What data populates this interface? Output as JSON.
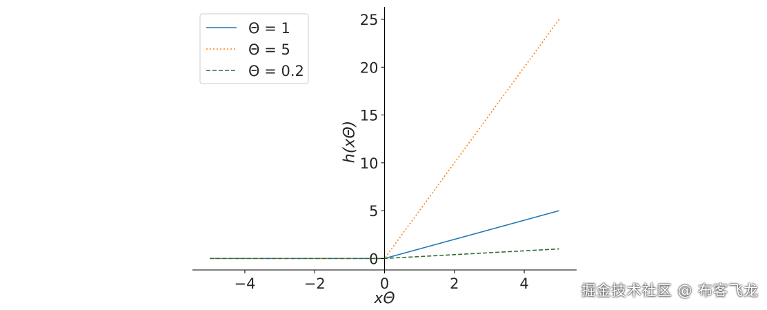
{
  "chart_data": {
    "type": "line",
    "xlabel": "xΘ",
    "ylabel": "h(xΘ)",
    "xlim": [
      -5.5,
      5.5
    ],
    "ylim": [
      -1.2,
      26.3
    ],
    "xticks": [
      -4,
      -2,
      0,
      2,
      4
    ],
    "xtick_labels": [
      "−4",
      "−2",
      "0",
      "2",
      "4"
    ],
    "yticks": [
      0,
      5,
      10,
      15,
      20,
      25
    ],
    "ytick_labels": [
      "0",
      "5",
      "10",
      "15",
      "20",
      "25"
    ],
    "x": [
      -5,
      0,
      5
    ],
    "series": [
      {
        "name": "Θ = 1",
        "values": [
          0,
          0,
          5
        ],
        "color": "#1f77b4",
        "style": "solid"
      },
      {
        "name": "Θ = 5",
        "values": [
          0,
          0,
          25
        ],
        "color": "#ff7f0e",
        "style": "dotted"
      },
      {
        "name": "Θ = 0.2",
        "values": [
          0,
          0,
          1
        ],
        "color": "#2e6b3a",
        "style": "dashed"
      }
    ],
    "grid": false,
    "legend_position": "top-left"
  },
  "watermark": "掘金技术社区 @ 布客飞龙"
}
